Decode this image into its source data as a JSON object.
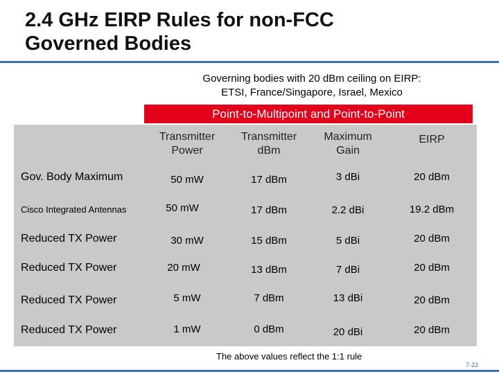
{
  "title": {
    "line1": "2.4 GHz EIRP Rules for non-FCC",
    "line2": "Governed Bodies"
  },
  "subtitle": {
    "line1": "Governing bodies with 20 dBm ceiling on EIRP:",
    "line2": "ETSI, France/Singapore, Israel, Mexico"
  },
  "banner": "Point-to-Multipoint and Point-to-Point",
  "table": {
    "headers": [
      {
        "line1": "Transmitter",
        "line2": "Power"
      },
      {
        "line1": "Transmitter",
        "line2": "dBm"
      },
      {
        "line1": "Maximum",
        "line2": "Gain"
      },
      {
        "line1": "EIRP",
        "line2": ""
      }
    ],
    "rows": [
      {
        "label": "Gov. Body Maximum",
        "power": "50 mW",
        "dbm": "17 dBm",
        "gain": "3 dBi",
        "eirp": "20 dBm"
      },
      {
        "label": "Cisco Integrated Antennas",
        "power": "50 mW",
        "dbm": "17 dBm",
        "gain": "2.2 dBi",
        "eirp": "19.2 dBm"
      },
      {
        "label": "Reduced TX Power",
        "power": "30 mW",
        "dbm": "15 dBm",
        "gain": "5 dBi",
        "eirp": "20 dBm"
      },
      {
        "label": "Reduced TX Power",
        "power": "20 mW",
        "dbm": "13 dBm",
        "gain": "7 dBi",
        "eirp": "20 dBm"
      },
      {
        "label": "Reduced TX Power",
        "power": "5 mW",
        "dbm": "7 dBm",
        "gain": "13 dBi",
        "eirp": "20 dBm"
      },
      {
        "label": "Reduced TX Power",
        "power": "1 mW",
        "dbm": "0 dBm",
        "gain": "20 dBi",
        "eirp": "20 dBm"
      }
    ]
  },
  "footnote": "The above values reflect the 1:1 rule",
  "page_number": "7-23",
  "colors": {
    "banner": "#e2001a",
    "table_bg": "#c9c9c9",
    "accent": "#3a6fb0"
  }
}
